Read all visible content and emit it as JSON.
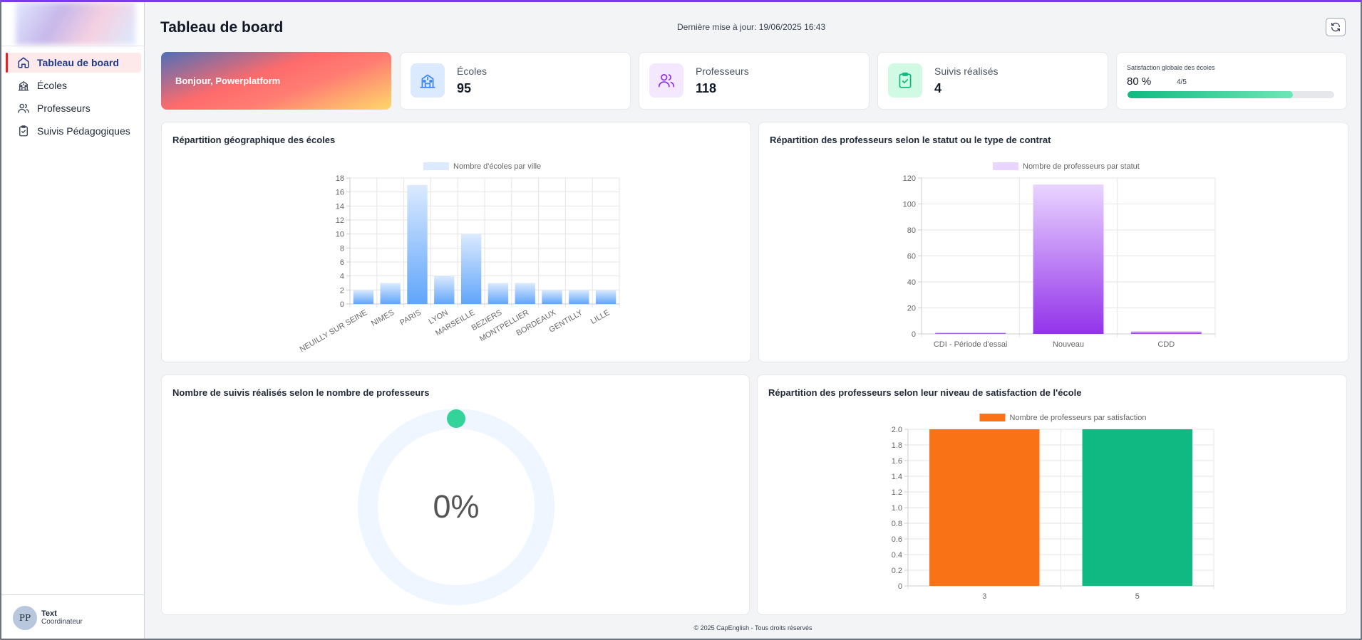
{
  "sidebar": {
    "items": [
      {
        "label": "Tableau de board",
        "active": true,
        "icon": "home-icon"
      },
      {
        "label": "Écoles",
        "active": false,
        "icon": "school-icon"
      },
      {
        "label": "Professeurs",
        "active": false,
        "icon": "users-icon"
      },
      {
        "label": "Suivis Pédagogiques",
        "active": false,
        "icon": "clipboard-check-icon"
      }
    ],
    "user": {
      "initials": "PP",
      "name": "Text",
      "role": "Coordinateur"
    }
  },
  "header": {
    "title": "Tableau de board",
    "last_update": "Dernière mise à jour: 19/06/2025 16:43",
    "refresh_icon": "refresh-icon"
  },
  "welcome": {
    "text": "Bonjour, Powerplatform"
  },
  "stats": [
    {
      "label": "Écoles",
      "value": "95",
      "icon": "school-icon",
      "color": "#dbeafe"
    },
    {
      "label": "Professeurs",
      "value": "118",
      "icon": "users-icon",
      "color": "#f3e8ff"
    },
    {
      "label": "Suivis réalisés",
      "value": "4",
      "icon": "clipboard-check-icon",
      "color": "#d1fae5"
    }
  ],
  "satisfaction": {
    "title": "Satisfaction globale des écoles",
    "percent_label": "80 %",
    "score_label": "4/5",
    "fraction": 0.8
  },
  "panels": {
    "geo": "Répartition géographique des écoles",
    "profs_status": "Répartition des professeurs selon le statut ou le type de contrat",
    "suivis": "Nombre de suivis réalisés selon le nombre de professeurs",
    "satisfaction": "Répartition des professeurs selon leur niveau de satisfaction de l'école"
  },
  "chart_data": [
    {
      "type": "bar",
      "legend": "Nombre d'écoles par ville",
      "categories": [
        "NEUILLY SUR SEINE",
        "NIMES",
        "PARIS",
        "LYON",
        "MARSEILLE",
        "BEZIERS",
        "MONTPELLIER",
        "BORDEAUX",
        "GENTILLY",
        "LILLE"
      ],
      "values": [
        2,
        3,
        17,
        4,
        10,
        3,
        3,
        2,
        2,
        2
      ],
      "ylim": [
        0,
        18
      ],
      "yticks": [
        0,
        2,
        4,
        6,
        8,
        10,
        12,
        14,
        16,
        18
      ],
      "colors": {
        "top": "#dbeafe",
        "bottom": "#60a5fa"
      }
    },
    {
      "type": "bar",
      "legend": "Nombre de professeurs par statut",
      "categories": [
        "CDI - Période d'essai",
        "Nouveau",
        "CDD"
      ],
      "values": [
        1,
        115,
        2
      ],
      "ylim": [
        0,
        120
      ],
      "yticks": [
        0,
        20,
        40,
        60,
        80,
        100,
        120
      ],
      "colors": {
        "top": "#e9d5ff",
        "bottom": "#9333ea"
      }
    },
    {
      "type": "pie",
      "value_label": "0%",
      "value": 0,
      "colors": {
        "track": "#eff6ff",
        "knob": "#34d399"
      }
    },
    {
      "type": "bar",
      "legend": "Nombre de professeurs par satisfaction",
      "categories": [
        "3",
        "5"
      ],
      "values": [
        2,
        2
      ],
      "ylim": [
        0,
        2
      ],
      "yticks": [
        "0",
        "0.2",
        "0.4",
        "0.6",
        "0.8",
        "1.0",
        "1.2",
        "1.4",
        "1.6",
        "1.8",
        "2.0"
      ],
      "colors": [
        "#f97316",
        "#10b981"
      ]
    }
  ],
  "footer": {
    "text": "© 2025 CapEnglish - Tous droits réservés"
  }
}
